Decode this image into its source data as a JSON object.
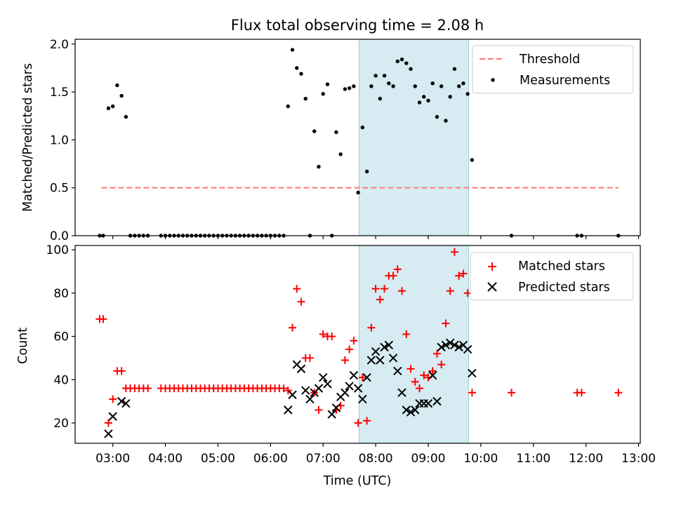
{
  "chart_data": [
    {
      "type": "scatter",
      "title": "Flux total observing time = 2.08 h",
      "xlabel": "",
      "ylabel": "Matched/Predicted stars",
      "xlim": [
        "02:17",
        "13:02"
      ],
      "ylim": [
        0,
        2.05
      ],
      "yticks": [
        "0.0",
        "0.5",
        "1.0",
        "1.5",
        "2.0"
      ],
      "xtick_values": [
        "03:00",
        "04:00",
        "05:00",
        "06:00",
        "07:00",
        "08:00",
        "09:00",
        "10:00",
        "11:00",
        "12:00",
        "13:00"
      ],
      "shaded_interval": [
        "07:41",
        "09:46"
      ],
      "legend_position": "upper right",
      "series": [
        {
          "name": "Threshold",
          "style": "dashed-line",
          "color": "#ff7f7f",
          "x": [
            "02:47",
            "12:37"
          ],
          "y": [
            0.5,
            0.5
          ]
        },
        {
          "name": "Measurements",
          "style": "dot",
          "color": "#000000",
          "x": [
            "02:45",
            "02:49",
            "02:55",
            "03:00",
            "03:05",
            "03:10",
            "03:15",
            "03:20",
            "03:25",
            "03:30",
            "03:35",
            "03:40",
            "03:55",
            "04:00",
            "04:05",
            "04:10",
            "04:15",
            "04:20",
            "04:25",
            "04:30",
            "04:35",
            "04:40",
            "04:45",
            "04:50",
            "04:55",
            "05:00",
            "05:05",
            "05:10",
            "05:15",
            "05:20",
            "05:25",
            "05:30",
            "05:35",
            "05:40",
            "05:45",
            "05:50",
            "05:55",
            "06:00",
            "06:05",
            "06:10",
            "06:15",
            "06:20",
            "06:25",
            "06:30",
            "06:35",
            "06:40",
            "06:45",
            "06:50",
            "06:55",
            "07:00",
            "07:05",
            "07:10",
            "07:15",
            "07:20",
            "07:25",
            "07:30",
            "07:35",
            "07:40",
            "07:45",
            "07:50",
            "07:55",
            "08:00",
            "08:05",
            "08:10",
            "08:15",
            "08:20",
            "08:25",
            "08:30",
            "08:35",
            "08:40",
            "08:45",
            "08:50",
            "08:55",
            "09:00",
            "09:05",
            "09:10",
            "09:15",
            "09:20",
            "09:25",
            "09:30",
            "09:35",
            "09:40",
            "09:45",
            "09:50",
            "10:35",
            "11:50",
            "11:55",
            "12:37"
          ],
          "y": [
            0,
            0,
            1.33,
            1.35,
            1.57,
            1.46,
            1.24,
            0,
            0,
            0,
            0,
            0,
            0,
            0,
            0,
            0,
            0,
            0,
            0,
            0,
            0,
            0,
            0,
            0,
            0,
            0,
            0,
            0,
            0,
            0,
            0,
            0,
            0,
            0,
            0,
            0,
            0,
            0,
            0,
            0,
            0,
            1.35,
            1.94,
            1.75,
            1.69,
            1.43,
            0,
            1.09,
            0.72,
            1.48,
            1.58,
            0,
            1.08,
            0.85,
            1.53,
            1.54,
            1.56,
            0.45,
            1.13,
            0.67,
            1.56,
            1.67,
            1.43,
            1.67,
            1.59,
            1.56,
            1.82,
            1.84,
            1.8,
            1.74,
            1.56,
            1.39,
            1.45,
            1.41,
            1.59,
            1.24,
            1.56,
            1.2,
            1.45,
            1.74,
            1.56,
            1.59,
            1.48,
            0.79,
            0,
            0,
            0,
            0
          ]
        }
      ]
    },
    {
      "type": "scatter",
      "title": "",
      "xlabel": "Time (UTC)",
      "ylabel": "Count",
      "xlim": [
        "02:17",
        "13:02"
      ],
      "ylim": [
        10.6,
        102
      ],
      "yticks": [
        "20",
        "40",
        "60",
        "80",
        "100"
      ],
      "xticks": [
        "03:00",
        "04:00",
        "05:00",
        "06:00",
        "07:00",
        "08:00",
        "09:00",
        "10:00",
        "11:00",
        "12:00",
        "13:00"
      ],
      "shaded_interval": [
        "07:41",
        "09:46"
      ],
      "legend_position": "upper right",
      "series": [
        {
          "name": "Matched stars",
          "marker": "plus",
          "color": "#ff0000",
          "x": [
            "02:45",
            "02:49",
            "02:55",
            "03:00",
            "03:05",
            "03:10",
            "03:15",
            "03:20",
            "03:25",
            "03:30",
            "03:35",
            "03:40",
            "03:55",
            "04:00",
            "04:05",
            "04:10",
            "04:15",
            "04:20",
            "04:25",
            "04:30",
            "04:35",
            "04:40",
            "04:45",
            "04:50",
            "04:55",
            "05:00",
            "05:05",
            "05:10",
            "05:15",
            "05:20",
            "05:25",
            "05:30",
            "05:35",
            "05:40",
            "05:45",
            "05:50",
            "05:55",
            "06:00",
            "06:05",
            "06:10",
            "06:15",
            "06:20",
            "06:25",
            "06:30",
            "06:35",
            "06:40",
            "06:45",
            "06:50",
            "06:55",
            "07:00",
            "07:05",
            "07:10",
            "07:15",
            "07:20",
            "07:25",
            "07:30",
            "07:35",
            "07:40",
            "07:45",
            "07:50",
            "07:55",
            "08:00",
            "08:05",
            "08:10",
            "08:15",
            "08:20",
            "08:25",
            "08:30",
            "08:35",
            "08:40",
            "08:45",
            "08:50",
            "08:55",
            "09:00",
            "09:05",
            "09:10",
            "09:15",
            "09:20",
            "09:25",
            "09:30",
            "09:35",
            "09:40",
            "09:45",
            "09:50",
            "10:35",
            "11:50",
            "11:55",
            "12:37"
          ],
          "y": [
            68,
            68,
            20,
            31,
            44,
            44,
            36,
            36,
            36,
            36,
            36,
            36,
            36,
            36,
            36,
            36,
            36,
            36,
            36,
            36,
            36,
            36,
            36,
            36,
            36,
            36,
            36,
            36,
            36,
            36,
            36,
            36,
            36,
            36,
            36,
            36,
            36,
            36,
            36,
            36,
            36,
            35,
            64,
            82,
            76,
            50,
            50,
            34,
            26,
            61,
            60,
            60,
            26,
            28,
            49,
            54,
            58,
            20,
            41,
            21,
            64,
            82,
            77,
            82,
            88,
            88,
            91,
            81,
            61,
            45,
            39,
            36,
            42,
            41,
            44,
            52,
            47,
            66,
            81,
            99,
            88,
            89,
            80,
            34,
            34,
            34,
            34,
            34
          ]
        },
        {
          "name": "Predicted stars",
          "marker": "x",
          "color": "#000000",
          "x": [
            "02:55",
            "03:00",
            "03:10",
            "03:15",
            "06:20",
            "06:25",
            "06:30",
            "06:35",
            "06:40",
            "06:45",
            "06:50",
            "06:55",
            "07:00",
            "07:05",
            "07:10",
            "07:15",
            "07:20",
            "07:25",
            "07:30",
            "07:35",
            "07:40",
            "07:45",
            "07:50",
            "07:55",
            "08:00",
            "08:05",
            "08:10",
            "08:15",
            "08:20",
            "08:25",
            "08:30",
            "08:35",
            "08:40",
            "08:45",
            "08:50",
            "08:55",
            "09:00",
            "09:05",
            "09:10",
            "09:15",
            "09:20",
            "09:25",
            "09:30",
            "09:35",
            "09:40",
            "09:45",
            "09:50"
          ],
          "y": [
            15,
            23,
            30,
            29,
            26,
            33,
            47,
            45,
            35,
            31,
            34,
            36,
            41,
            38,
            24,
            27,
            32,
            34,
            37,
            42,
            36,
            31,
            41,
            49,
            53,
            49,
            55,
            56,
            50,
            44,
            34,
            26,
            25,
            26,
            29,
            29,
            29,
            42,
            30,
            55,
            56,
            57,
            56,
            55,
            56,
            54,
            43
          ]
        }
      ]
    }
  ]
}
